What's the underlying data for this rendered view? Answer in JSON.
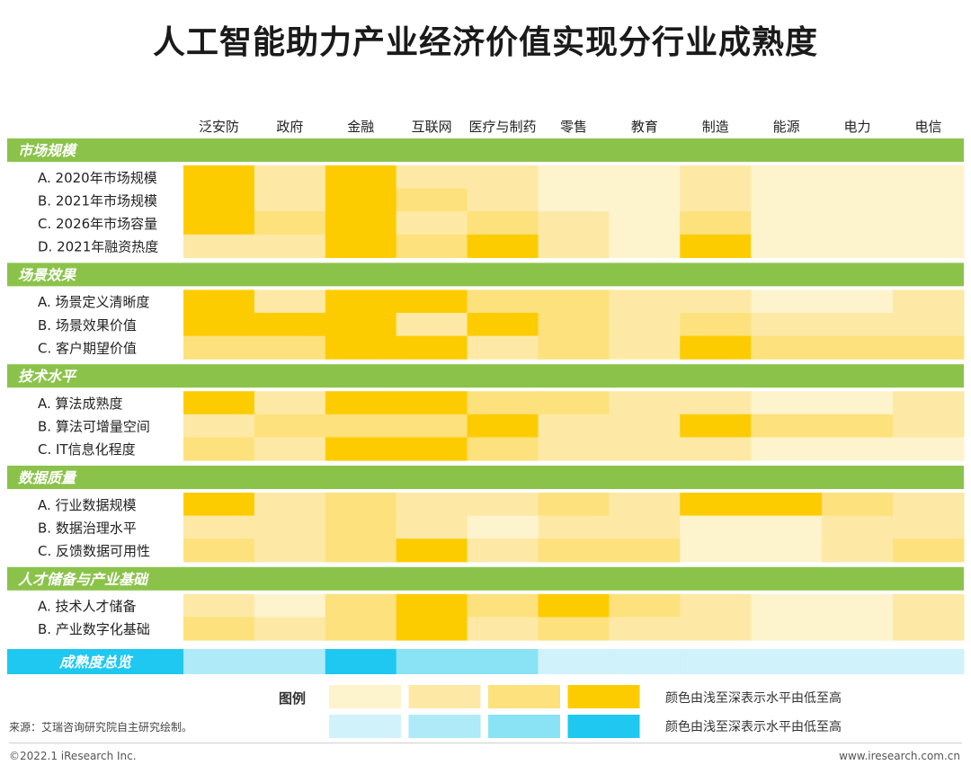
{
  "title": "人工智能助力产业经济价值实现分行业成熟度",
  "chart_data": {
    "type": "heatmap",
    "title": "人工智能助力产业经济价值实现分行业成熟度",
    "columns": [
      "泛安防",
      "政府",
      "金融",
      "互联网",
      "医疗与制药",
      "零售",
      "教育",
      "制造",
      "能源",
      "电力",
      "电信"
    ],
    "level_scale": "1 = lightest, 4 = deepest (颜色由浅至深表示水平由低至高)",
    "sections": [
      {
        "name": "市场规模",
        "rows": [
          {
            "label": "A. 2020年市场规模",
            "levels": [
              4,
              2,
              4,
              2,
              2,
              1,
              1,
              2,
              1,
              1,
              1
            ]
          },
          {
            "label": "B. 2021年市场规模",
            "levels": [
              4,
              2,
              4,
              3,
              2,
              1,
              1,
              2,
              1,
              1,
              1
            ]
          },
          {
            "label": "C. 2026年市场容量",
            "levels": [
              4,
              3,
              4,
              2,
              3,
              2,
              1,
              3,
              1,
              1,
              1
            ]
          },
          {
            "label": "D. 2021年融资热度",
            "levels": [
              2,
              2,
              4,
              3,
              4,
              2,
              1,
              4,
              1,
              1,
              1
            ]
          }
        ]
      },
      {
        "name": "场景效果",
        "rows": [
          {
            "label": "A. 场景定义清晰度",
            "levels": [
              4,
              2,
              4,
              4,
              3,
              3,
              2,
              2,
              1,
              1,
              2
            ]
          },
          {
            "label": "B. 场景效果价值",
            "levels": [
              4,
              4,
              4,
              2,
              4,
              3,
              2,
              3,
              2,
              2,
              2
            ]
          },
          {
            "label": "C. 客户期望价值",
            "levels": [
              3,
              3,
              4,
              4,
              2,
              3,
              2,
              4,
              3,
              3,
              3
            ]
          }
        ]
      },
      {
        "name": "技术水平",
        "rows": [
          {
            "label": "A. 算法成熟度",
            "levels": [
              4,
              2,
              4,
              4,
              3,
              3,
              2,
              2,
              1,
              1,
              2
            ]
          },
          {
            "label": "B. 算法可增量空间",
            "levels": [
              2,
              3,
              3,
              3,
              4,
              2,
              2,
              4,
              3,
              3,
              2
            ]
          },
          {
            "label": "C. IT信息化程度",
            "levels": [
              3,
              2,
              4,
              4,
              3,
              2,
              2,
              2,
              1,
              1,
              1
            ]
          }
        ]
      },
      {
        "name": "数据质量",
        "rows": [
          {
            "label": "A. 行业数据规模",
            "levels": [
              4,
              2,
              3,
              2,
              2,
              3,
              2,
              4,
              4,
              3,
              2
            ]
          },
          {
            "label": "B. 数据治理水平",
            "levels": [
              2,
              2,
              3,
              2,
              1,
              2,
              2,
              1,
              1,
              2,
              2
            ]
          },
          {
            "label": "C. 反馈数据可用性",
            "levels": [
              3,
              2,
              3,
              4,
              2,
              3,
              3,
              1,
              1,
              2,
              3
            ]
          }
        ]
      },
      {
        "name": "人才储备与产业基础",
        "rows": [
          {
            "label": "A. 技术人才储备",
            "levels": [
              2,
              1,
              3,
              4,
              3,
              4,
              3,
              2,
              1,
              1,
              2
            ]
          },
          {
            "label": "B. 产业数字化基础",
            "levels": [
              3,
              2,
              3,
              4,
              2,
              3,
              2,
              2,
              1,
              1,
              2
            ]
          }
        ]
      }
    ],
    "overview": {
      "label": "成熟度总览",
      "levels": [
        2,
        2,
        4,
        3,
        3,
        1,
        1,
        1,
        1,
        1,
        1
      ]
    },
    "legend": {
      "title": "图例",
      "note": "颜色由浅至深表示水平由低至高",
      "yellow_scale": [
        "#fdf3cd",
        "#fde9a5",
        "#fde17c",
        "#fdcc00"
      ],
      "blue_scale": [
        "#cff2fb",
        "#aeeaf8",
        "#8ae2f5",
        "#1ec8f0"
      ]
    }
  },
  "colors": {
    "section_header": "#8bc34a",
    "overview_label_bg": "#1ec8f0",
    "column_header_text": "#222222"
  },
  "source": "来源：艾瑞咨询研究院自主研究绘制。",
  "copyright": "©2022.1 iResearch Inc.",
  "website": "www.iresearch.com.cn"
}
